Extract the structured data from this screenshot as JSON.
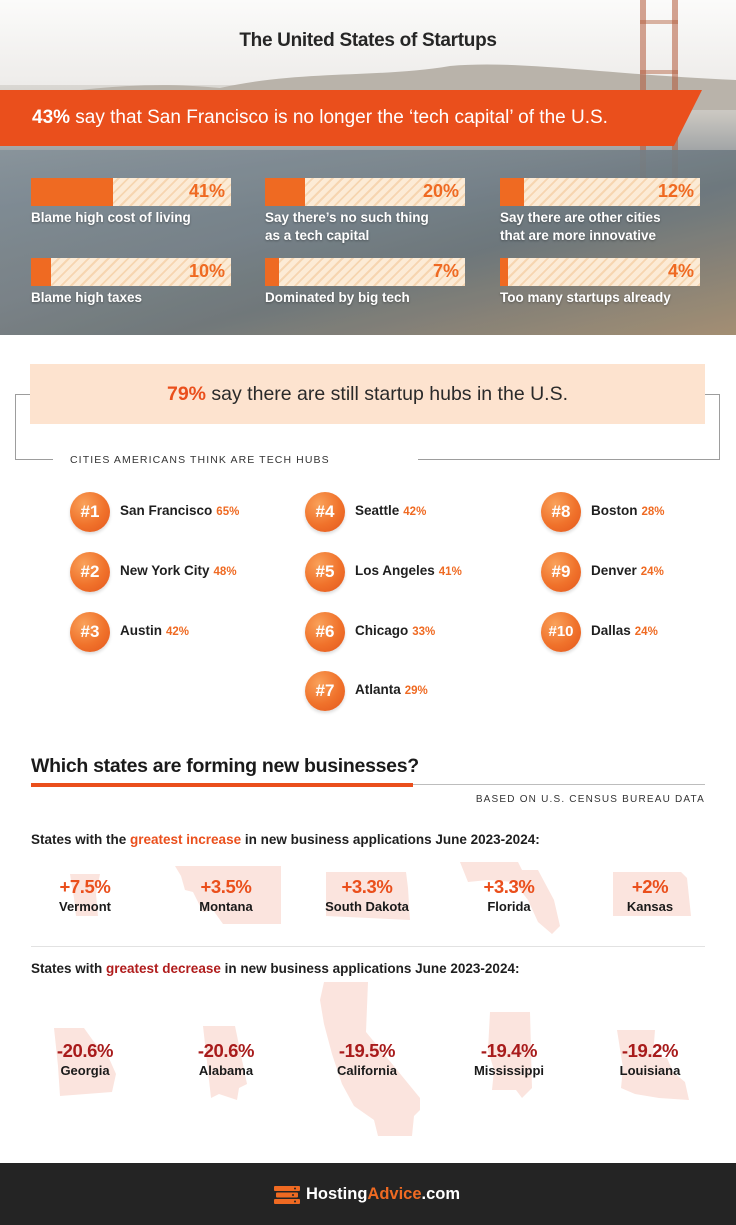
{
  "header": {
    "title": "The United States of Startups",
    "banner_pct": "43%",
    "banner_rest": " say that San Francisco is no longer the ‘tech capital’ of the U.S."
  },
  "sf_reasons": [
    {
      "pct_label": "41%",
      "value": 41,
      "label_line1": "Blame high cost of living",
      "label_line2": ""
    },
    {
      "pct_label": "20%",
      "value": 20,
      "label_line1": "Say there’s no such thing",
      "label_line2": "as a tech capital"
    },
    {
      "pct_label": "12%",
      "value": 12,
      "label_line1": "Say there are other cities",
      "label_line2": "that are more innovative"
    },
    {
      "pct_label": "10%",
      "value": 10,
      "label_line1": "Blame high taxes",
      "label_line2": ""
    },
    {
      "pct_label": "7%",
      "value": 7,
      "label_line1": "Dominated by big tech",
      "label_line2": ""
    },
    {
      "pct_label": "4%",
      "value": 4,
      "label_line1": "Too many startups already",
      "label_line2": ""
    }
  ],
  "hubs": {
    "headline_pct": "79%",
    "headline_rest": " say there are still startup hubs in the U.S.",
    "subtitle": "CITIES AMERICANS THINK ARE TECH HUBS",
    "cities": [
      {
        "rank": "#1",
        "name": "San Francisco",
        "pct": "65%"
      },
      {
        "rank": "#2",
        "name": "New York City",
        "pct": "48%"
      },
      {
        "rank": "#3",
        "name": "Austin",
        "pct": "42%"
      },
      {
        "rank": "#4",
        "name": "Seattle",
        "pct": "42%"
      },
      {
        "rank": "#5",
        "name": "Los Angeles",
        "pct": "41%"
      },
      {
        "rank": "#6",
        "name": "Chicago",
        "pct": "33%"
      },
      {
        "rank": "#7",
        "name": "Atlanta",
        "pct": "29%"
      },
      {
        "rank": "#8",
        "name": "Boston",
        "pct": "28%"
      },
      {
        "rank": "#9",
        "name": "Denver",
        "pct": "24%"
      },
      {
        "rank": "#10",
        "name": "Dallas",
        "pct": "24%"
      }
    ]
  },
  "states_section": {
    "title": "Which states are forming new businesses?",
    "source": "BASED ON U.S. CENSUS BUREAU DATA",
    "increase_head": {
      "pre": "States with the ",
      "hl": "greatest increase",
      "post": " in new business applications June 2023-2024:"
    },
    "decrease_head": {
      "pre": "States with ",
      "hl": "greatest decrease",
      "post": " in new business applications June 2023-2024:"
    },
    "increase": [
      {
        "value": "+7.5%",
        "state": "Vermont"
      },
      {
        "value": "+3.5%",
        "state": "Montana"
      },
      {
        "value": "+3.3%",
        "state": "South Dakota"
      },
      {
        "value": "+3.3%",
        "state": "Florida"
      },
      {
        "value": "+2%",
        "state": "Kansas"
      }
    ],
    "decrease": [
      {
        "value": "-20.6%",
        "state": "Georgia"
      },
      {
        "value": "-20.6%",
        "state": "Alabama"
      },
      {
        "value": "-19.5%",
        "state": "California"
      },
      {
        "value": "-19.4%",
        "state": "Mississippi"
      },
      {
        "value": "-19.2%",
        "state": "Louisiana"
      }
    ]
  },
  "footer": {
    "brand_a": "Hosting",
    "brand_b": "Advice",
    "brand_c": ".com"
  },
  "colors": {
    "accent": "#ea4f1c",
    "orange": "#ef6a22",
    "decrease": "#a81b1b",
    "hub_box": "#fde3cf",
    "footer": "#242424"
  }
}
